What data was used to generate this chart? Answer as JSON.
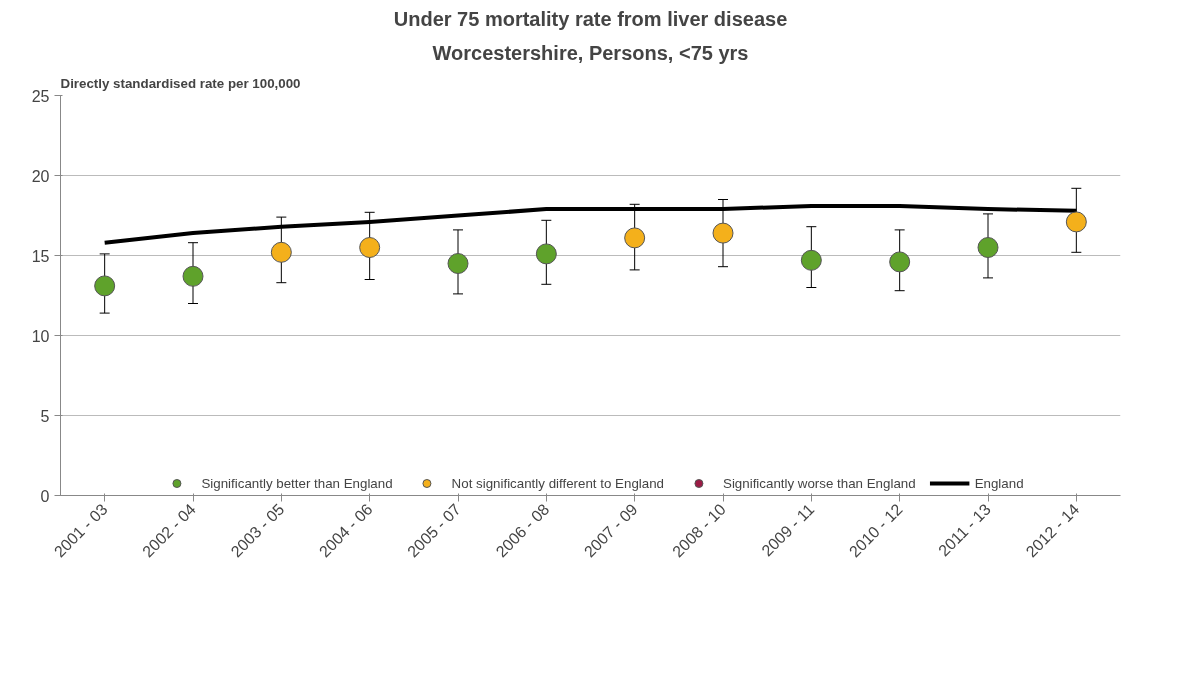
{
  "chart_data": {
    "type": "scatter",
    "title": "Under 75 mortality rate from liver disease",
    "subtitle": "Worcestershire, Persons, <75 yrs",
    "ylabel": "Directly standardised rate per 100,000",
    "categories": [
      "2001 - 03",
      "2002 - 04",
      "2003 - 05",
      "2004 - 06",
      "2005 - 07",
      "2006 - 08",
      "2007 - 09",
      "2008 - 10",
      "2009 - 11",
      "2010 - 12",
      "2011 - 13",
      "2012 - 14"
    ],
    "ylim": [
      0,
      25
    ],
    "yticks": [
      0,
      5,
      10,
      15,
      20,
      25
    ],
    "grid": "y",
    "legend": "bottom",
    "series": [
      {
        "name": "Significantly better than England",
        "marker": "circle",
        "color": "#5fa22b",
        "values": [
          13.1,
          13.7,
          null,
          null,
          14.5,
          15.1,
          null,
          null,
          14.7,
          14.6,
          15.5,
          null
        ],
        "errors": [
          [
            11.4,
            15.1
          ],
          [
            12.0,
            15.8
          ],
          null,
          null,
          [
            12.6,
            16.6
          ],
          [
            13.2,
            17.2
          ],
          null,
          null,
          [
            13.0,
            16.8
          ],
          [
            12.8,
            16.6
          ],
          [
            13.6,
            17.6
          ],
          null
        ]
      },
      {
        "name": "Not significantly different to England",
        "marker": "circle",
        "color": "#f4b01b",
        "values": [
          null,
          null,
          15.2,
          15.5,
          null,
          null,
          16.1,
          16.4,
          null,
          null,
          null,
          17.1
        ],
        "errors": [
          null,
          null,
          [
            13.3,
            17.4
          ],
          [
            13.5,
            17.7
          ],
          null,
          null,
          [
            14.1,
            18.2
          ],
          [
            14.3,
            18.5
          ],
          null,
          null,
          null,
          [
            15.2,
            19.2
          ]
        ]
      },
      {
        "name": "Significantly worse than England",
        "marker": "circle",
        "color": "#9b1b45",
        "values": [
          null,
          null,
          null,
          null,
          null,
          null,
          null,
          null,
          null,
          null,
          null,
          null
        ]
      },
      {
        "name": "England",
        "type": "line",
        "marker": "none",
        "color": "#000000",
        "line_style": "solid",
        "values": [
          15.8,
          16.4,
          16.8,
          17.1,
          17.5,
          17.9,
          17.9,
          17.9,
          18.1,
          18.1,
          17.9,
          17.8
        ]
      }
    ]
  }
}
